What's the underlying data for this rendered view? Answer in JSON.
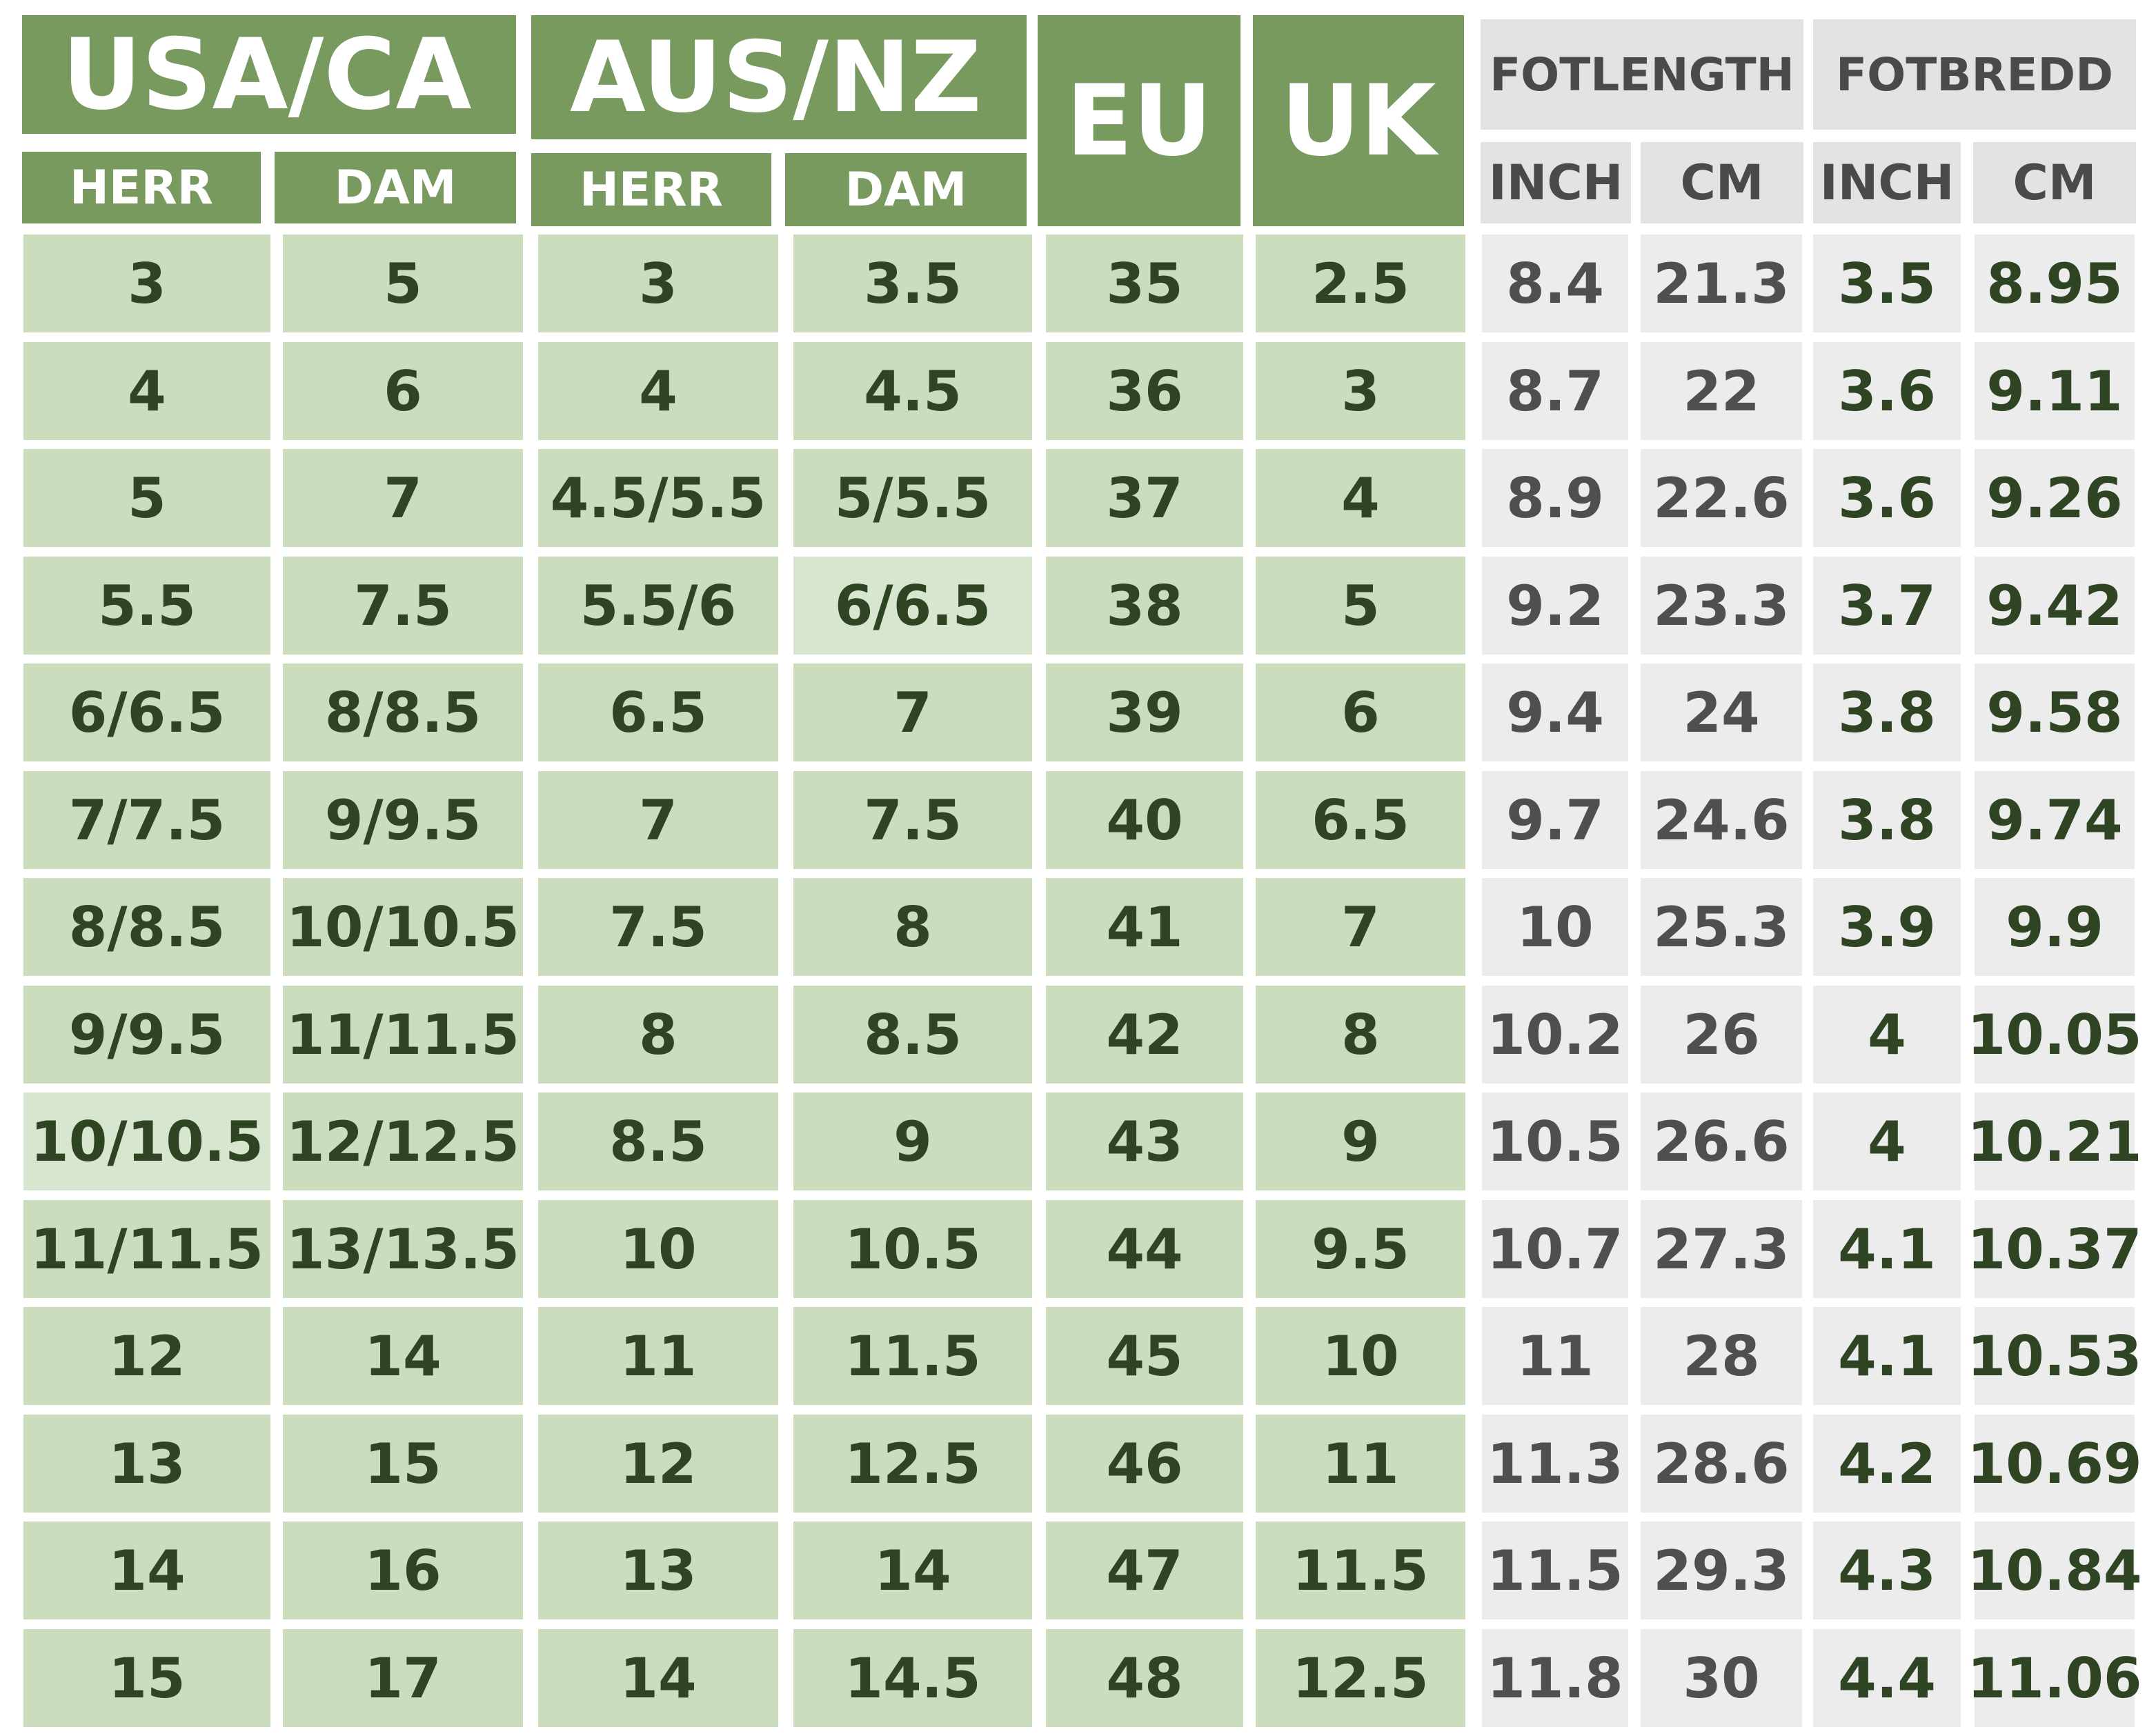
{
  "headers": {
    "usa_ca": "USA/CA",
    "aus_nz": "AUS/NZ",
    "eu": "EU",
    "uk": "UK",
    "fotlength": "FOTLENGTH",
    "fotbredd": "FOTBREDD",
    "herr": "HERR",
    "dam": "DAM",
    "inch": "INCH",
    "cm": "CM"
  },
  "colors": {
    "header_green": "#789a5f",
    "cell_green": "#cbddbd",
    "cell_green_light": "#d9e6cf",
    "cell_grey": "#ececec",
    "text_dark_green": "#2e4423",
    "text_grey": "#4f4f4f"
  },
  "rows": [
    [
      "3",
      "5",
      "3",
      "3.5",
      "35",
      "2.5",
      "8.4",
      "21.3",
      "3.5",
      "8.95"
    ],
    [
      "4",
      "6",
      "4",
      "4.5",
      "36",
      "3",
      "8.7",
      "22",
      "3.6",
      "9.11"
    ],
    [
      "5",
      "7",
      "4.5/5.5",
      "5/5.5",
      "37",
      "4",
      "8.9",
      "22.6",
      "3.6",
      "9.26"
    ],
    [
      "5.5",
      "7.5",
      "5.5/6",
      "6/6.5",
      "38",
      "5",
      "9.2",
      "23.3",
      "3.7",
      "9.42"
    ],
    [
      "6/6.5",
      "8/8.5",
      "6.5",
      "7",
      "39",
      "6",
      "9.4",
      "24",
      "3.8",
      "9.58"
    ],
    [
      "7/7.5",
      "9/9.5",
      "7",
      "7.5",
      "40",
      "6.5",
      "9.7",
      "24.6",
      "3.8",
      "9.74"
    ],
    [
      "8/8.5",
      "10/10.5",
      "7.5",
      "8",
      "41",
      "7",
      "10",
      "25.3",
      "3.9",
      "9.9"
    ],
    [
      "9/9.5",
      "11/11.5",
      "8",
      "8.5",
      "42",
      "8",
      "10.2",
      "26",
      "4",
      "10.05"
    ],
    [
      "10/10.5",
      "12/12.5",
      "8.5",
      "9",
      "43",
      "9",
      "10.5",
      "26.6",
      "4",
      "10.21"
    ],
    [
      "11/11.5",
      "13/13.5",
      "10",
      "10.5",
      "44",
      "9.5",
      "10.7",
      "27.3",
      "4.1",
      "10.37"
    ],
    [
      "12",
      "14",
      "11",
      "11.5",
      "45",
      "10",
      "11",
      "28",
      "4.1",
      "10.53"
    ],
    [
      "13",
      "15",
      "12",
      "12.5",
      "46",
      "11",
      "11.3",
      "28.6",
      "4.2",
      "10.69"
    ],
    [
      "14",
      "16",
      "13",
      "14",
      "47",
      "11.5",
      "11.5",
      "29.3",
      "4.3",
      "10.84"
    ],
    [
      "15",
      "17",
      "14",
      "14.5",
      "48",
      "12.5",
      "11.8",
      "30",
      "4.4",
      "11.06"
    ]
  ]
}
